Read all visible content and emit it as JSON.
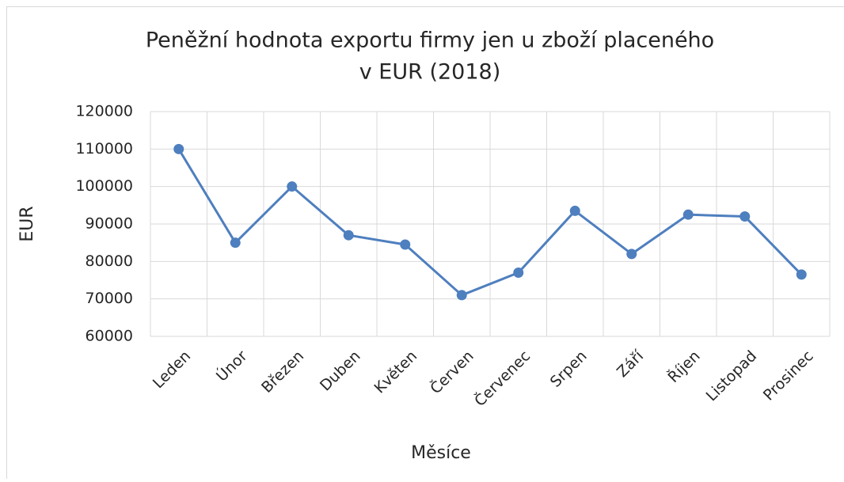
{
  "chart_data": {
    "type": "line",
    "title": [
      "Peněžní hodnota exportu firmy jen u zboží placeného",
      "v EUR (2018)"
    ],
    "xlabel": "Měsíce",
    "ylabel": "EUR",
    "categories": [
      "Leden",
      "Únor",
      "Březen",
      "Duben",
      "Květen",
      "Červen",
      "Červenec",
      "Srpen",
      "Září",
      "Říjen",
      "Listopad",
      "Prosinec"
    ],
    "series": [
      {
        "name": "EUR",
        "color": "#4e7fbf",
        "values": [
          110000,
          85000,
          100000,
          87000,
          84500,
          71000,
          77000,
          93500,
          82000,
          92500,
          92000,
          76500
        ]
      }
    ],
    "ylim": [
      60000,
      120000
    ],
    "yticks": [
      60000,
      70000,
      80000,
      90000,
      100000,
      110000,
      120000
    ],
    "grid": true
  }
}
